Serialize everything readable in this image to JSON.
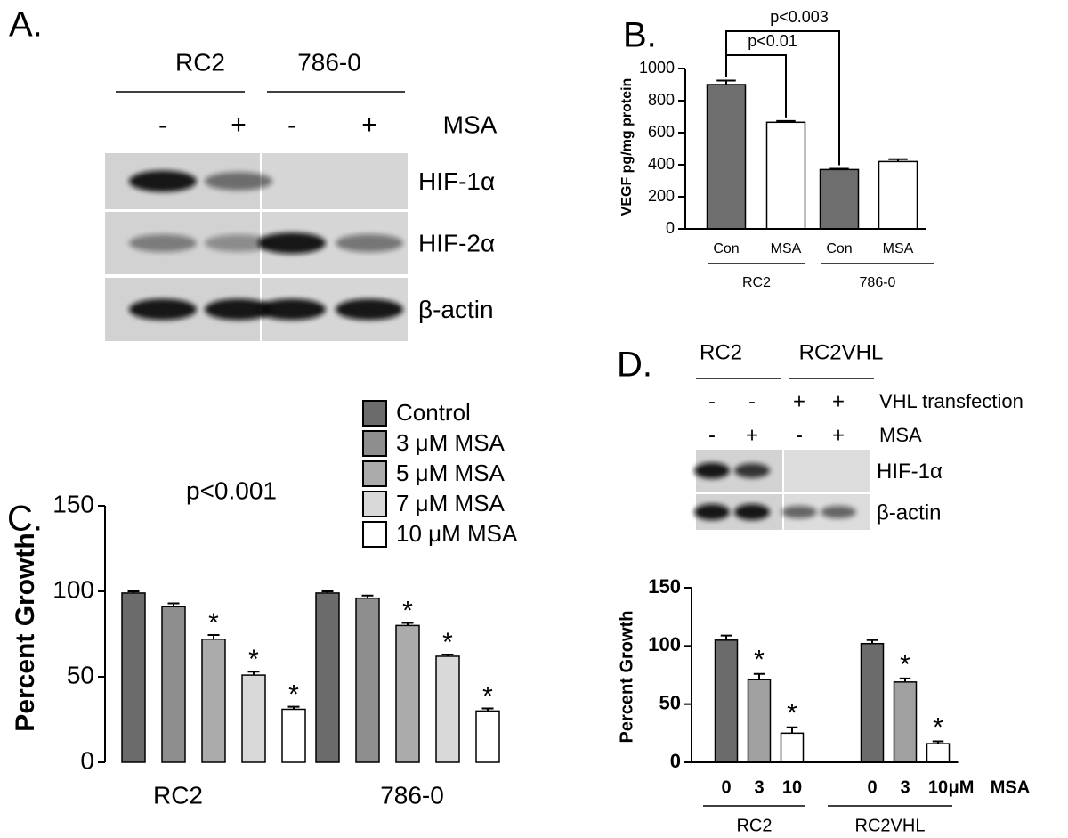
{
  "panels": {
    "a": "A.",
    "b": "B.",
    "c": "C.",
    "d": "D."
  },
  "blot_a": {
    "headers": [
      "RC2",
      "786-0"
    ],
    "treatment": "MSA",
    "signs": [
      "-",
      "+",
      "-",
      "+"
    ],
    "rows": [
      "HIF-1α",
      "HIF-2α",
      "β-actin"
    ]
  },
  "blot_d": {
    "headers": [
      "RC2",
      "RC2VHL"
    ],
    "sign_rows": [
      {
        "label": "VHL transfection",
        "signs": [
          "-",
          "-",
          "+",
          "+"
        ]
      },
      {
        "label": "MSA",
        "signs": [
          "-",
          "+",
          "-",
          "+"
        ]
      }
    ],
    "rows": [
      "HIF-1α",
      "β-actin"
    ]
  },
  "chart_data": [
    {
      "type": "bar",
      "y_label": "VEGF pg/mg protein",
      "categories": [
        "Con",
        "MSA",
        "Con",
        "MSA"
      ],
      "values": [
        900,
        665,
        370,
        420
      ],
      "errors": [
        25,
        8,
        5,
        15
      ],
      "colors": [
        "#6e6e6e",
        "#ffffff",
        "#6e6e6e",
        "#ffffff"
      ],
      "groups": [
        "RC2",
        "786-0"
      ],
      "annotations": [
        "p<0.01",
        "p<0.003"
      ],
      "ylim": [
        0,
        1000
      ],
      "yticks": [
        0,
        200,
        400,
        600,
        800,
        1000
      ]
    },
    {
      "type": "grouped_bar",
      "y_label": "Percent Growth",
      "categories": [
        "RC2",
        "786-0"
      ],
      "annotations": [
        "p<0.001"
      ],
      "star": "*",
      "ylim": [
        0,
        150
      ],
      "yticks": [
        0,
        50,
        100,
        150
      ],
      "series": [
        {
          "name": "Control",
          "color": "#6b6b6b",
          "values": [
            99,
            99
          ],
          "errors": [
            1,
            1
          ],
          "sig": [
            false,
            false
          ]
        },
        {
          "name": "3 μM MSA",
          "color": "#8e8e8e",
          "values": [
            91,
            96
          ],
          "errors": [
            2,
            1.5
          ],
          "sig": [
            false,
            false
          ]
        },
        {
          "name": "5 μM MSA",
          "color": "#ababab",
          "values": [
            72,
            80
          ],
          "errors": [
            2.5,
            1.5
          ],
          "sig": [
            true,
            true
          ]
        },
        {
          "name": "7 μM MSA",
          "color": "#d9d9d9",
          "values": [
            51,
            62
          ],
          "errors": [
            2,
            1
          ],
          "sig": [
            true,
            true
          ]
        },
        {
          "name": "10 μM MSA",
          "color": "#ffffff",
          "values": [
            31,
            30
          ],
          "errors": [
            1.5,
            1.5
          ],
          "sig": [
            true,
            true
          ]
        }
      ]
    },
    {
      "type": "bar",
      "y_label": "Percent Growth",
      "categories": [
        "0",
        "3",
        "10",
        "0",
        "3",
        "10"
      ],
      "values": [
        105,
        71,
        25,
        102,
        69,
        16
      ],
      "errors": [
        4,
        5,
        5,
        3,
        3,
        2
      ],
      "colors": [
        "#6b6b6b",
        "#a0a0a0",
        "#ffffff",
        "#6b6b6b",
        "#a0a0a0",
        "#ffffff"
      ],
      "sig": [
        false,
        true,
        true,
        false,
        true,
        true
      ],
      "star": "*",
      "unit": "μM",
      "treatment": "MSA",
      "groups": [
        "RC2",
        "RC2VHL"
      ],
      "ylim": [
        0,
        150
      ],
      "yticks": [
        0,
        50,
        100,
        150
      ]
    }
  ]
}
